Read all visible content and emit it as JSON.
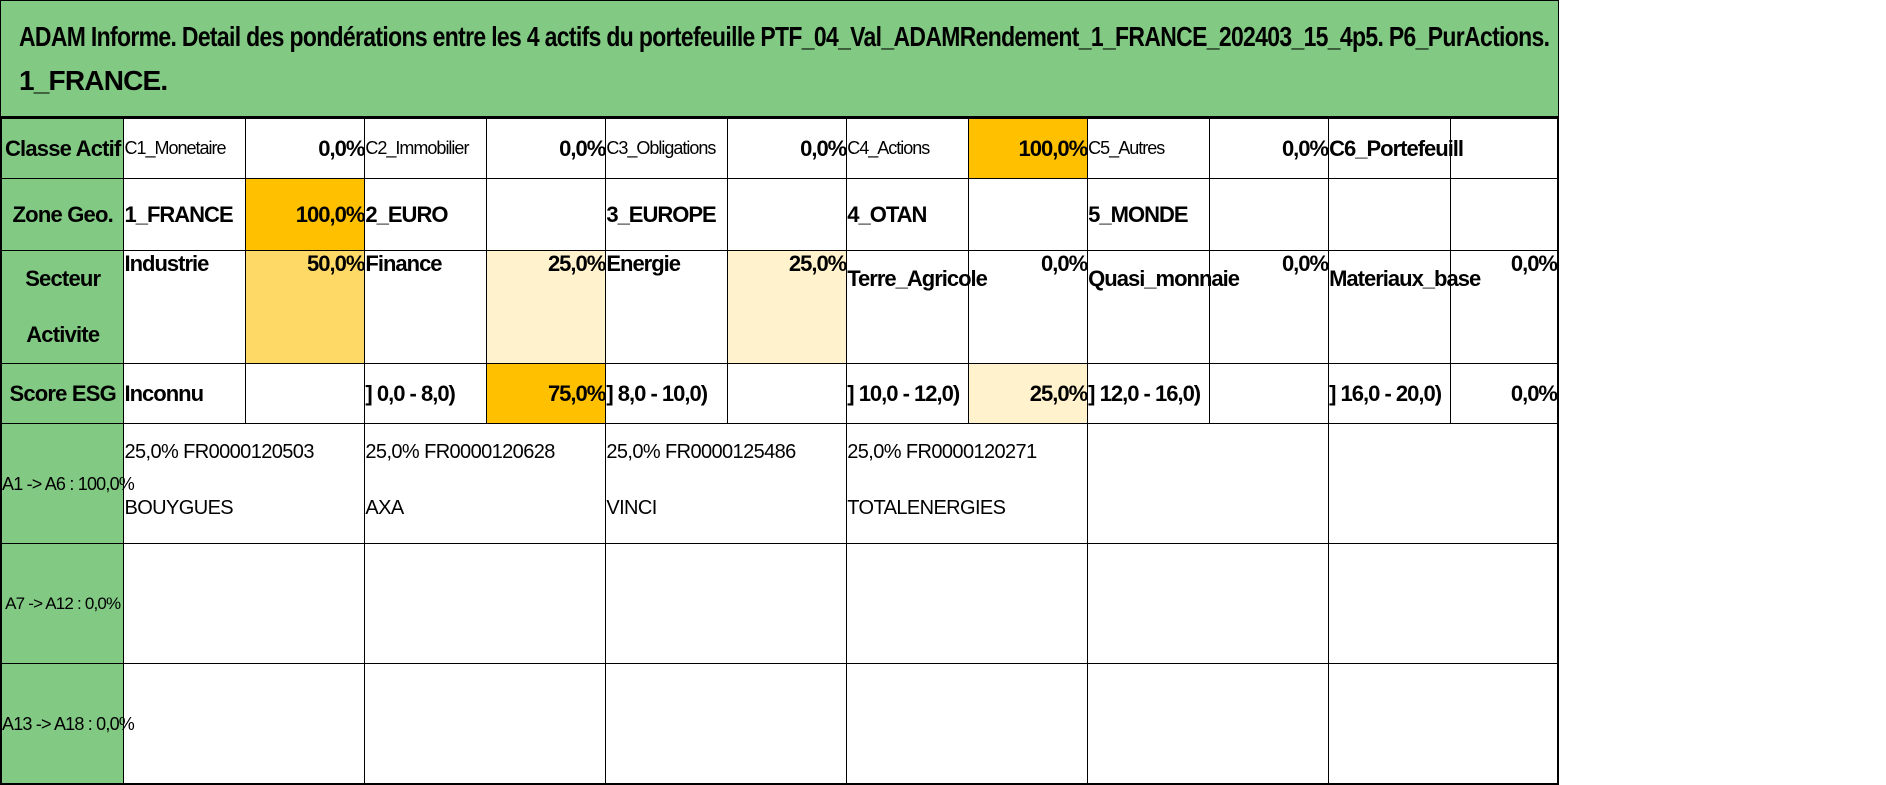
{
  "title": {
    "line1": "ADAM Informe. Detail des pondérations entre les 4 actifs du portefeuille PTF_04_Val_ADAMRendement_1_FRANCE_202403_15_4p5. P6_PurActions.",
    "line2": "1_FRANCE."
  },
  "classe_actif": {
    "header": "Classe Actif",
    "items": [
      {
        "label": "C1_Monetaire",
        "value": "0,0%"
      },
      {
        "label": "C2_Immobilier",
        "value": "0,0%"
      },
      {
        "label": "C3_Obligations",
        "value": "0,0%"
      },
      {
        "label": "C4_Actions",
        "value": "100,0%"
      },
      {
        "label": "C5_Autres",
        "value": "0,0%"
      },
      {
        "label": "C6_Portefeuill",
        "value": ""
      }
    ]
  },
  "zone_geo": {
    "header": "Zone Geo.",
    "items": [
      {
        "label": "1_FRANCE",
        "value": "100,0%"
      },
      {
        "label": "2_EURO",
        "value": ""
      },
      {
        "label": "3_EUROPE",
        "value": ""
      },
      {
        "label": "4_OTAN",
        "value": ""
      },
      {
        "label": "5_MONDE",
        "value": ""
      },
      {
        "label": "",
        "value": ""
      }
    ]
  },
  "secteur": {
    "header": "Secteur Activite",
    "items": [
      {
        "label": "Industrie",
        "value": "50,0%"
      },
      {
        "label": "Finance",
        "value": "25,0%"
      },
      {
        "label": "Energie",
        "value": "25,0%"
      },
      {
        "label": "Terre_Agricole",
        "value": "0,0%"
      },
      {
        "label": "Quasi_monnaie",
        "value": "0,0%"
      },
      {
        "label": "Materiaux_base",
        "value": "0,0%"
      }
    ]
  },
  "score_esg": {
    "header": "Score ESG",
    "items": [
      {
        "label": "Inconnu",
        "value": ""
      },
      {
        "label": "] 0,0 - 8,0)",
        "value": "75,0%"
      },
      {
        "label": "] 8,0 - 10,0)",
        "value": ""
      },
      {
        "label": "] 10,0 - 12,0)",
        "value": "25,0%"
      },
      {
        "label": "] 12,0 - 16,0)",
        "value": ""
      },
      {
        "label": "] 16,0 - 20,0)",
        "value": "0,0%"
      }
    ]
  },
  "assets": {
    "row1": {
      "header": "A1 -> A6 : 100,0%",
      "items": [
        {
          "line1": "25,0% FR0000120503",
          "line2": "BOUYGUES"
        },
        {
          "line1": "25,0% FR0000120628",
          "line2": "AXA"
        },
        {
          "line1": "25,0% FR0000125486",
          "line2": "VINCI"
        },
        {
          "line1": "25,0% FR0000120271",
          "line2": "TOTALENERGIES"
        }
      ]
    },
    "row2": {
      "header": "A7 -> A12 : 0,0%"
    },
    "row3": {
      "header": "A13 -> A18 : 0,0%"
    }
  },
  "colors": {
    "header_green": "#82c983",
    "highlight_strong": "#ffc000",
    "highlight_medium": "#ffd966",
    "highlight_light": "#fff2cc"
  }
}
